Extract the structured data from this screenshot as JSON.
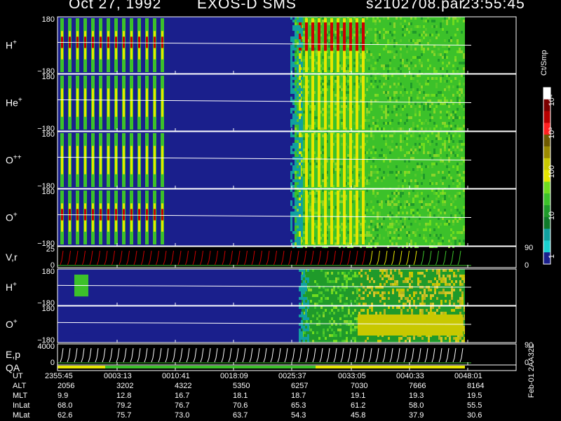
{
  "header": {
    "date": "Oct 27, 1992",
    "instrument": "EXOS-D SMS",
    "file": "s2102708.par",
    "time": "23:55:45"
  },
  "colors": {
    "background": "#000000",
    "spectrum_low": "#1a1f8c",
    "spectrum_mid": "#3cc12a",
    "spectrum_high": "#c8c800",
    "spectrum_peak": "#cc0000",
    "trace": "#ffffff"
  },
  "colorbar": {
    "unit": "Ct/Smp",
    "labels": [
      "10⁴",
      "10³",
      "100",
      "10",
      "1"
    ],
    "colors": [
      "#ffffff",
      "#7a0000",
      "#b80000",
      "#ff2020",
      "#6e5a00",
      "#9a8a00",
      "#c8c800",
      "#e6e600",
      "#6fdc1f",
      "#3cc12a",
      "#1f9a2a",
      "#0f7a2a",
      "#11a0a0",
      "#1ad0d0",
      "#1a1f8c"
    ]
  },
  "chart_data": {
    "type": "heatmap",
    "x_axis_quantity": "UT",
    "panels": [
      {
        "label": "H",
        "superscript": "+",
        "ylim": [
          -180,
          180
        ],
        "tick_labels": [
          "180",
          "−180"
        ]
      },
      {
        "label": "He",
        "superscript": "+",
        "ylim": [
          -180,
          180
        ],
        "tick_labels": [
          "180",
          "−180"
        ]
      },
      {
        "label": "O",
        "superscript": "++",
        "ylim": [
          -180,
          180
        ],
        "tick_labels": [
          "180",
          "−180"
        ]
      },
      {
        "label": "O",
        "superscript": "+",
        "ylim": [
          -180,
          180
        ],
        "tick_labels": [
          "180",
          "−180"
        ]
      },
      {
        "label": "V,r",
        "superscript": "",
        "ylim": [
          0,
          25
        ],
        "tick_labels": [
          "25",
          "0"
        ],
        "right_tick_labels": [
          "90",
          "0"
        ]
      },
      {
        "label": "H",
        "superscript": "+",
        "ylim": [
          -180,
          180
        ],
        "tick_labels": [
          "180",
          "−180"
        ]
      },
      {
        "label": "O",
        "superscript": "+",
        "ylim": [
          -180,
          180
        ],
        "tick_labels": [
          "180",
          "−180"
        ]
      },
      {
        "label": "E,p",
        "superscript": "",
        "ylim": [
          0,
          4000
        ],
        "tick_labels": [
          "4000",
          "0"
        ],
        "right_tick_labels": [
          "90",
          "0"
        ]
      },
      {
        "label": "QA",
        "superscript": ""
      }
    ],
    "table": {
      "rows": [
        {
          "name": "UT",
          "values": [
            "2355:45",
            "0003:13",
            "0010:41",
            "0018:09",
            "0025:37",
            "0033:05",
            "0040:33",
            "0048:01"
          ]
        },
        {
          "name": "ALT",
          "values": [
            "2056",
            "3202",
            "4322",
            "5350",
            "6257",
            "7030",
            "7666",
            "8164"
          ]
        },
        {
          "name": "MLT",
          "values": [
            "9.9",
            "12.8",
            "16.7",
            "18.1",
            "18.7",
            "19.1",
            "19.3",
            "19.5"
          ]
        },
        {
          "name": "InLat",
          "values": [
            "68.0",
            "79.2",
            "76.7",
            "70.6",
            "65.3",
            "61.2",
            "58.0",
            "55.5"
          ]
        },
        {
          "name": "MLat",
          "values": [
            "62.6",
            "75.7",
            "73.0",
            "63.7",
            "54.3",
            "45.8",
            "37.9",
            "30.6"
          ]
        }
      ]
    },
    "footer_note": "Feb-01 2AA32L"
  }
}
